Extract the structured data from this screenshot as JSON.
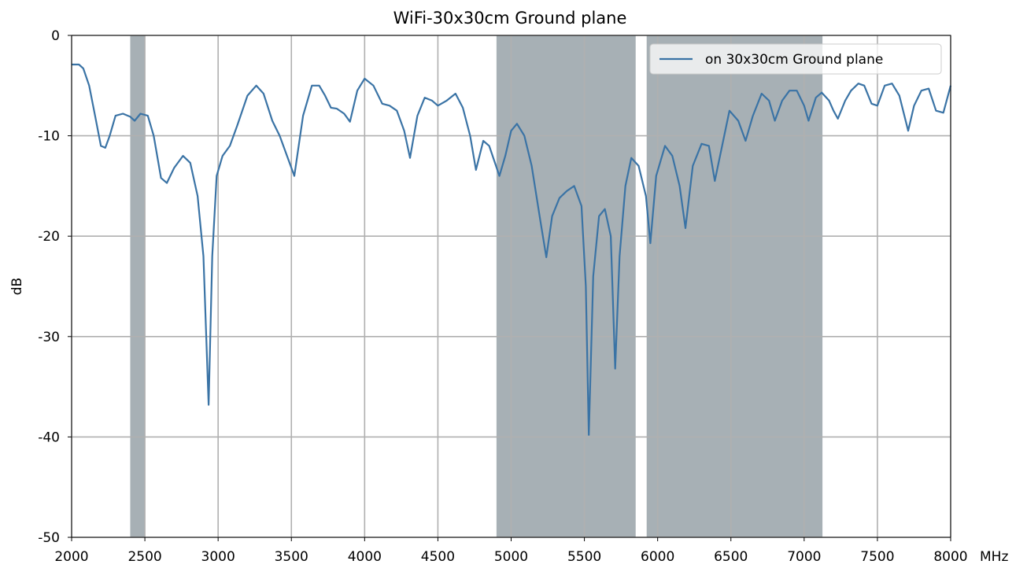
{
  "chart_data": {
    "type": "line",
    "title": "WiFi-30x30cm Ground plane",
    "xlabel": "",
    "x_unit_label": "MHz",
    "ylabel": "dB",
    "xlim": [
      2000,
      8000
    ],
    "ylim": [
      -50,
      0
    ],
    "grid": true,
    "legend_position": "top-right",
    "x_ticks": [
      2000,
      2500,
      3000,
      3500,
      4000,
      4500,
      5000,
      5500,
      6000,
      6500,
      7000,
      7500,
      8000
    ],
    "x_tick_labels": [
      "2000",
      "2500",
      "3000",
      "3500",
      "4000",
      "4500",
      "5000",
      "5500",
      "6000",
      "6500",
      "7000",
      "7500",
      "8000"
    ],
    "y_ticks": [
      0,
      -10,
      -20,
      -30,
      -40,
      -50
    ],
    "y_tick_labels": [
      "0",
      "-10",
      "-20",
      "-30",
      "-40",
      "-50"
    ],
    "bands": [
      {
        "x_start": 2400,
        "x_end": 2500,
        "color": "#a7b0b5"
      },
      {
        "x_start": 4900,
        "x_end": 5850,
        "color": "#a7b0b5"
      },
      {
        "x_start": 5925,
        "x_end": 7125,
        "color": "#a7b0b5"
      }
    ],
    "series": [
      {
        "name": "on 30x30cm Ground plane",
        "color": "#3a73a5",
        "points": [
          [
            2000,
            -2.9
          ],
          [
            2050,
            -2.9
          ],
          [
            2080,
            -3.3
          ],
          [
            2120,
            -5.0
          ],
          [
            2160,
            -8.0
          ],
          [
            2200,
            -11.0
          ],
          [
            2230,
            -11.2
          ],
          [
            2260,
            -10.0
          ],
          [
            2300,
            -8.0
          ],
          [
            2350,
            -7.8
          ],
          [
            2400,
            -8.1
          ],
          [
            2430,
            -8.5
          ],
          [
            2470,
            -7.8
          ],
          [
            2520,
            -8.0
          ],
          [
            2560,
            -10.0
          ],
          [
            2610,
            -14.2
          ],
          [
            2650,
            -14.7
          ],
          [
            2700,
            -13.2
          ],
          [
            2760,
            -12.0
          ],
          [
            2810,
            -12.7
          ],
          [
            2860,
            -16.0
          ],
          [
            2900,
            -22.0
          ],
          [
            2935,
            -36.8
          ],
          [
            2960,
            -22.0
          ],
          [
            2990,
            -14.0
          ],
          [
            3030,
            -12.0
          ],
          [
            3080,
            -11.0
          ],
          [
            3130,
            -9.0
          ],
          [
            3200,
            -6.0
          ],
          [
            3260,
            -5.0
          ],
          [
            3310,
            -5.8
          ],
          [
            3370,
            -8.5
          ],
          [
            3420,
            -10.0
          ],
          [
            3470,
            -12.0
          ],
          [
            3520,
            -14.0
          ],
          [
            3580,
            -8.0
          ],
          [
            3640,
            -5.0
          ],
          [
            3690,
            -5.0
          ],
          [
            3730,
            -6.0
          ],
          [
            3770,
            -7.2
          ],
          [
            3810,
            -7.3
          ],
          [
            3860,
            -7.8
          ],
          [
            3900,
            -8.6
          ],
          [
            3950,
            -5.5
          ],
          [
            4000,
            -4.3
          ],
          [
            4060,
            -5.0
          ],
          [
            4120,
            -6.8
          ],
          [
            4170,
            -7.0
          ],
          [
            4220,
            -7.5
          ],
          [
            4270,
            -9.5
          ],
          [
            4310,
            -12.2
          ],
          [
            4360,
            -8.0
          ],
          [
            4410,
            -6.2
          ],
          [
            4460,
            -6.5
          ],
          [
            4500,
            -7.0
          ],
          [
            4560,
            -6.5
          ],
          [
            4620,
            -5.8
          ],
          [
            4670,
            -7.2
          ],
          [
            4720,
            -10.0
          ],
          [
            4760,
            -13.4
          ],
          [
            4810,
            -10.5
          ],
          [
            4850,
            -11.0
          ],
          [
            4920,
            -14.0
          ],
          [
            4960,
            -12.0
          ],
          [
            5000,
            -9.5
          ],
          [
            5040,
            -8.8
          ],
          [
            5090,
            -10.0
          ],
          [
            5140,
            -13.0
          ],
          [
            5200,
            -18.5
          ],
          [
            5240,
            -22.1
          ],
          [
            5280,
            -18.0
          ],
          [
            5330,
            -16.2
          ],
          [
            5380,
            -15.5
          ],
          [
            5430,
            -15.0
          ],
          [
            5480,
            -17.0
          ],
          [
            5510,
            -25.0
          ],
          [
            5530,
            -39.8
          ],
          [
            5560,
            -24.0
          ],
          [
            5600,
            -18.0
          ],
          [
            5640,
            -17.3
          ],
          [
            5680,
            -20.0
          ],
          [
            5710,
            -33.2
          ],
          [
            5740,
            -22.0
          ],
          [
            5780,
            -15.0
          ],
          [
            5820,
            -12.2
          ],
          [
            5870,
            -13.0
          ],
          [
            5920,
            -16.0
          ],
          [
            5950,
            -20.7
          ],
          [
            5990,
            -14.0
          ],
          [
            6050,
            -11.0
          ],
          [
            6100,
            -12.0
          ],
          [
            6150,
            -15.0
          ],
          [
            6190,
            -19.2
          ],
          [
            6240,
            -13.0
          ],
          [
            6300,
            -10.8
          ],
          [
            6350,
            -11.0
          ],
          [
            6390,
            -14.5
          ],
          [
            6440,
            -11.0
          ],
          [
            6490,
            -7.5
          ],
          [
            6550,
            -8.5
          ],
          [
            6600,
            -10.5
          ],
          [
            6650,
            -8.0
          ],
          [
            6710,
            -5.8
          ],
          [
            6760,
            -6.5
          ],
          [
            6800,
            -8.5
          ],
          [
            6850,
            -6.5
          ],
          [
            6900,
            -5.5
          ],
          [
            6950,
            -5.5
          ],
          [
            7000,
            -7.0
          ],
          [
            7030,
            -8.5
          ],
          [
            7080,
            -6.2
          ],
          [
            7120,
            -5.7
          ],
          [
            7170,
            -6.5
          ],
          [
            7200,
            -7.5
          ],
          [
            7230,
            -8.3
          ],
          [
            7280,
            -6.5
          ],
          [
            7320,
            -5.5
          ],
          [
            7370,
            -4.8
          ],
          [
            7410,
            -5.0
          ],
          [
            7460,
            -6.8
          ],
          [
            7500,
            -7.0
          ],
          [
            7550,
            -5.0
          ],
          [
            7600,
            -4.8
          ],
          [
            7650,
            -6.0
          ],
          [
            7710,
            -9.5
          ],
          [
            7750,
            -7.0
          ],
          [
            7800,
            -5.5
          ],
          [
            7850,
            -5.3
          ],
          [
            7900,
            -7.5
          ],
          [
            7950,
            -7.7
          ],
          [
            8000,
            -5.0
          ]
        ]
      }
    ]
  }
}
